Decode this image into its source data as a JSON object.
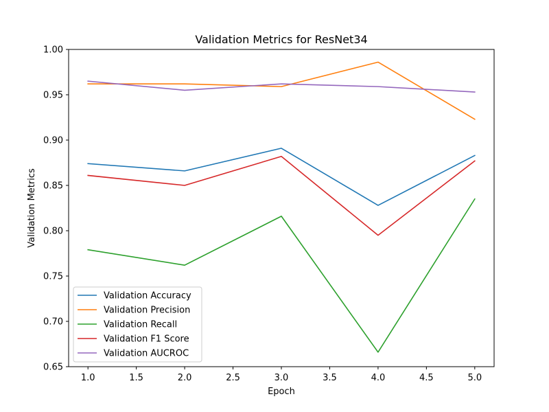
{
  "chart_data": {
    "type": "line",
    "title": "Validation Metrics for ResNet34",
    "xlabel": "Epoch",
    "ylabel": "Validation Metrics",
    "x": [
      1,
      2,
      3,
      4,
      5
    ],
    "xlim": [
      0.8,
      5.2
    ],
    "ylim": [
      0.65,
      1.0
    ],
    "xticks": [
      "1.0",
      "1.5",
      "2.0",
      "2.5",
      "3.0",
      "3.5",
      "4.0",
      "4.5",
      "5.0"
    ],
    "yticks": [
      "0.65",
      "0.70",
      "0.75",
      "0.80",
      "0.85",
      "0.90",
      "0.95",
      "1.00"
    ],
    "grid": false,
    "legend_position": "lower-left",
    "series": [
      {
        "name": "Validation Accuracy",
        "color": "#1f77b4",
        "values": [
          0.874,
          0.866,
          0.891,
          0.828,
          0.883
        ]
      },
      {
        "name": "Validation Precision",
        "color": "#ff7f0e",
        "values": [
          0.962,
          0.962,
          0.959,
          0.986,
          0.923
        ]
      },
      {
        "name": "Validation Recall",
        "color": "#2ca02c",
        "values": [
          0.779,
          0.762,
          0.816,
          0.666,
          0.835
        ]
      },
      {
        "name": "Validation F1 Score",
        "color": "#d62728",
        "values": [
          0.861,
          0.85,
          0.882,
          0.795,
          0.877
        ]
      },
      {
        "name": "Validation AUCROC",
        "color": "#9467bd",
        "values": [
          0.965,
          0.955,
          0.962,
          0.959,
          0.953
        ]
      }
    ]
  }
}
